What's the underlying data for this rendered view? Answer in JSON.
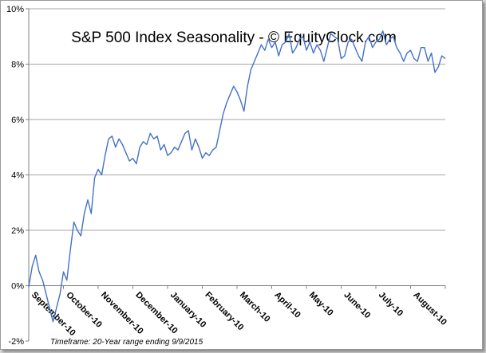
{
  "chart_data": {
    "type": "line",
    "title": "S&P 500 Index Seasonality - © EquityClock.com",
    "footnote": "Timeframe: 20-Year range ending 9/9/2015",
    "xlabel": "",
    "ylabel": "",
    "ylim": [
      -2,
      10
    ],
    "yticks": [
      -2,
      0,
      2,
      4,
      6,
      8,
      10
    ],
    "ytick_labels": [
      "-2%",
      "0%",
      "2%",
      "4%",
      "6%",
      "8%",
      "10%"
    ],
    "xlim": [
      0,
      12
    ],
    "xtick_labels": [
      "September-10",
      "October-10",
      "November-10",
      "December-10",
      "January-10",
      "February-10",
      "March-10",
      "April-10",
      "May-10",
      "June-10",
      "July-10",
      "August-10"
    ],
    "grid": "horizontal",
    "line_color": "#4472c4",
    "series": [
      {
        "x": [
          0,
          0.1,
          0.2,
          0.3,
          0.4,
          0.5,
          0.6,
          0.7,
          0.8,
          0.9,
          1.0,
          1.1,
          1.2,
          1.3,
          1.4,
          1.5,
          1.6,
          1.7,
          1.8,
          1.9,
          2.0,
          2.1,
          2.2,
          2.3,
          2.4,
          2.5,
          2.6,
          2.7,
          2.8,
          2.9,
          3.0,
          3.1,
          3.2,
          3.3,
          3.4,
          3.5,
          3.6,
          3.7,
          3.8,
          3.9,
          4.0,
          4.1,
          4.2,
          4.3,
          4.4,
          4.5,
          4.6,
          4.7,
          4.8,
          4.9,
          5.0,
          5.1,
          5.2,
          5.3,
          5.4,
          5.5,
          5.6,
          5.7,
          5.8,
          5.9,
          6.0,
          6.1,
          6.2,
          6.3,
          6.4,
          6.5,
          6.6,
          6.7,
          6.8,
          6.9,
          7.0,
          7.1,
          7.2,
          7.3,
          7.4,
          7.5,
          7.6,
          7.7,
          7.8,
          7.9,
          8.0,
          8.1,
          8.2,
          8.3,
          8.4,
          8.5,
          8.6,
          8.7,
          8.8,
          8.9,
          9.0,
          9.1,
          9.2,
          9.3,
          9.4,
          9.5,
          9.6,
          9.7,
          9.8,
          9.9,
          10.0,
          10.1,
          10.2,
          10.3,
          10.4,
          10.5,
          10.6,
          10.7,
          10.8,
          10.9,
          11.0,
          11.1,
          11.2,
          11.3,
          11.4,
          11.5,
          11.6,
          11.7,
          11.8,
          11.9,
          12.0
        ],
        "values": [
          -0.05,
          0.7,
          1.1,
          0.5,
          0.2,
          -0.3,
          -0.8,
          -1.3,
          -0.8,
          -0.3,
          0.5,
          0.2,
          1.3,
          2.3,
          2.0,
          1.8,
          2.6,
          3.1,
          2.6,
          3.9,
          4.2,
          4.0,
          4.7,
          5.3,
          5.4,
          5.0,
          5.3,
          5.1,
          4.8,
          4.5,
          4.6,
          4.4,
          5.0,
          5.2,
          5.1,
          5.5,
          5.3,
          5.4,
          4.9,
          5.1,
          4.7,
          4.8,
          5.0,
          4.9,
          5.2,
          5.5,
          5.6,
          4.9,
          5.3,
          5.0,
          4.6,
          4.8,
          4.7,
          4.9,
          5.0,
          5.6,
          6.2,
          6.6,
          6.9,
          7.2,
          7.0,
          6.7,
          6.3,
          7.2,
          7.8,
          8.1,
          8.4,
          8.7,
          8.5,
          8.9,
          8.6,
          8.8,
          8.3,
          8.7,
          8.8,
          9.1,
          8.4,
          8.6,
          8.9,
          9.0,
          8.5,
          8.8,
          8.4,
          8.7,
          8.5,
          8.1,
          8.6,
          9.1,
          9.0,
          8.9,
          8.2,
          8.3,
          8.8,
          8.9,
          8.6,
          8.3,
          8.1,
          8.8,
          9.0,
          8.6,
          8.8,
          8.9,
          9.2,
          8.7,
          8.9,
          9.0,
          8.6,
          8.4,
          8.1,
          8.4,
          8.5,
          8.2,
          8.1,
          8.6,
          8.6,
          8.1,
          8.4,
          7.7,
          7.9,
          8.3,
          8.2
        ]
      }
    ]
  }
}
